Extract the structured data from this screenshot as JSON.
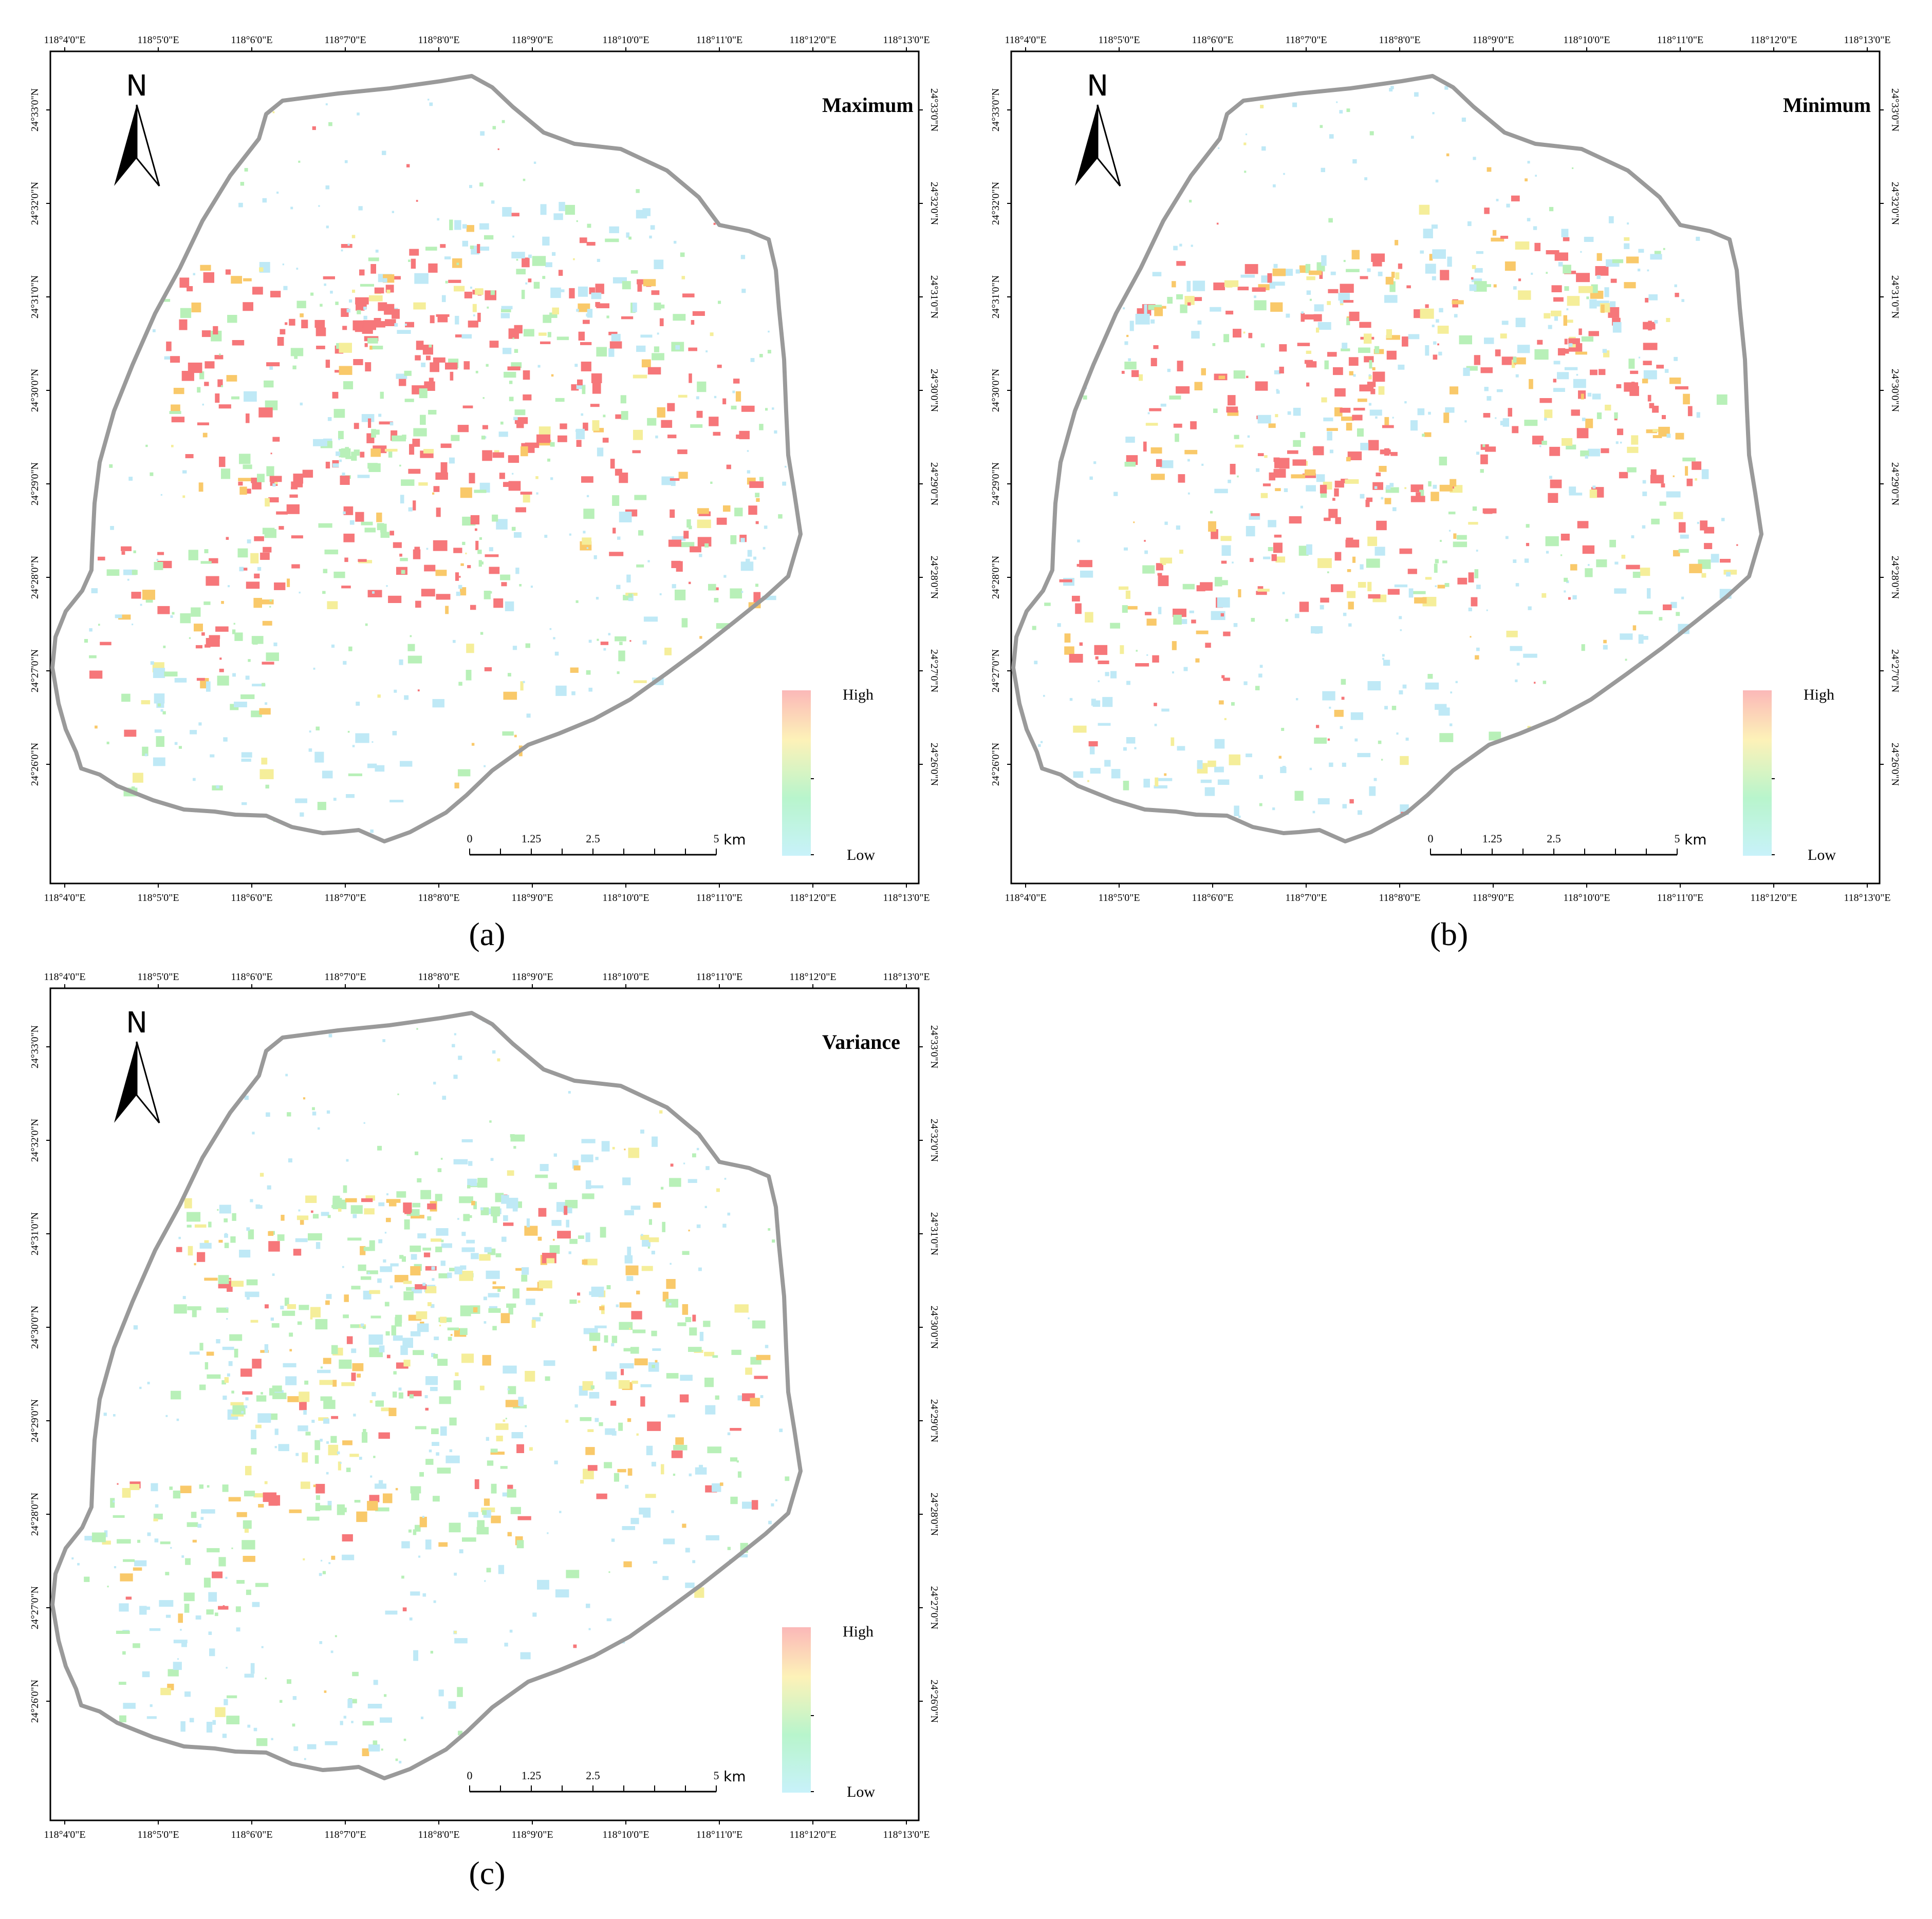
{
  "x_ticks": [
    "118°4'0\"E",
    "118°5'0\"E",
    "118°6'0\"E",
    "118°7'0\"E",
    "118°8'0\"E",
    "118°9'0\"E",
    "118°10'0\"E",
    "118°11'0\"E",
    "118°12'0\"E",
    "118°13'0\"E"
  ],
  "y_ticks": [
    "24°33'0\"N",
    "24°32'0\"N",
    "24°31'0\"N",
    "24°30'0\"N",
    "24°29'0\"N",
    "24°28'0\"N",
    "24°27'0\"N",
    "24°26'0\"N"
  ],
  "scale_bar": {
    "labels": [
      "0",
      "1.25",
      "2.5",
      "5"
    ],
    "unit": "km"
  },
  "north_label": "N",
  "legend": {
    "high": "High",
    "low": "Low",
    "colors": [
      "#fbb8b8",
      "#fdf2b8",
      "#b8f5cc",
      "#c8f2fa"
    ]
  },
  "palette": {
    "red": "#f6777a",
    "orange": "#f9c96a",
    "yellow": "#f5ee9a",
    "green": "#b8f0b8",
    "cyan": "#bfe9f6"
  },
  "panels": [
    {
      "id": "a",
      "title": "Maximum",
      "caption": "(a)"
    },
    {
      "id": "b",
      "title": "Minimum",
      "caption": "(b)"
    },
    {
      "id": "c",
      "title": "Variance",
      "caption": "(c)"
    }
  ]
}
